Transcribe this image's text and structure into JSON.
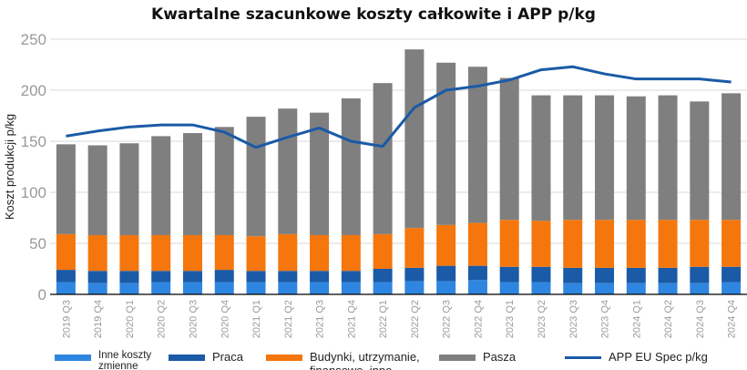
{
  "chart_data": {
    "type": "bar",
    "stacked": true,
    "title": "Kwartalne szacunkowe koszty całkowite i APP p/kg",
    "ylabel": "Koszt produkcji p/kg",
    "xlabel": "",
    "ylim": [
      0,
      250
    ],
    "yticks": [
      0,
      50,
      100,
      150,
      200,
      250
    ],
    "grid": true,
    "legend_position": "bottom",
    "categories": [
      "2019 Q3",
      "2019 Q4",
      "2020 Q1",
      "2020 Q2",
      "2020 Q3",
      "2020 Q4",
      "2021 Q1",
      "2021 Q2",
      "2021 Q3",
      "2021 Q4",
      "2022 Q1",
      "2022 Q2",
      "2022 Q3",
      "2022 Q4",
      "2023 Q1",
      "2023 Q2",
      "2023 Q3",
      "2023 Q4",
      "2024 Q1",
      "2024 Q2",
      "2024 Q3",
      "2024 Q4"
    ],
    "series": [
      {
        "name": "Inne koszty zmienne",
        "color": "#2f86e0",
        "values": [
          12,
          11,
          11,
          12,
          12,
          12,
          12,
          12,
          12,
          12,
          12,
          13,
          13,
          14,
          12,
          12,
          11,
          11,
          11,
          11,
          11,
          12
        ]
      },
      {
        "name": "Praca",
        "color": "#1a5aa6",
        "values": [
          12,
          12,
          12,
          11,
          11,
          12,
          11,
          11,
          11,
          11,
          13,
          13,
          15,
          14,
          15,
          15,
          15,
          15,
          15,
          15,
          16,
          15
        ]
      },
      {
        "name": "Budynki, utrzymanie, finansowe, inne",
        "color": "#f5760c",
        "values": [
          35,
          35,
          35,
          35,
          35,
          34,
          34,
          36,
          35,
          35,
          34,
          39,
          40,
          42,
          46,
          45,
          47,
          47,
          47,
          47,
          46,
          46
        ]
      },
      {
        "name": "Pasza",
        "color": "#7f7f7f",
        "values": [
          88,
          88,
          90,
          97,
          100,
          106,
          117,
          123,
          120,
          134,
          148,
          175,
          159,
          153,
          139,
          123,
          122,
          122,
          121,
          122,
          116,
          124
        ]
      }
    ],
    "line_series": {
      "name": "APP EU Spec p/kg",
      "color": "#1a5aa6",
      "type": "line",
      "values": [
        155,
        160,
        164,
        166,
        166,
        159,
        144,
        154,
        163,
        150,
        145,
        183,
        200,
        204,
        210,
        220,
        223,
        216,
        211,
        211,
        211,
        208
      ]
    }
  }
}
